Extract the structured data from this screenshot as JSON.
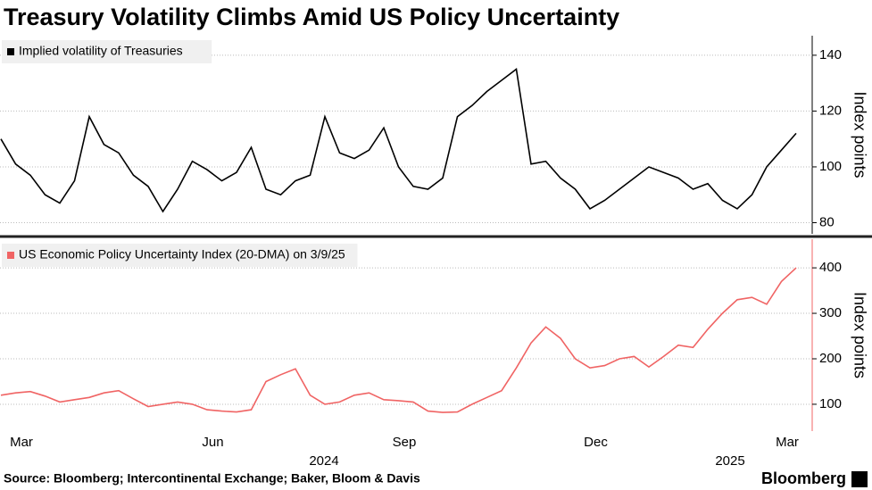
{
  "title": "Treasury Volatility Climbs Amid US Policy Uncertainty",
  "footer": {
    "source": "Source: Bloomberg; Intercontinental Exchange; Baker, Bloom & Davis",
    "brand": "Bloomberg"
  },
  "chart_data": [
    {
      "type": "line",
      "ylabel": "Index points",
      "ylim": [
        76,
        147
      ],
      "yticks": [
        80,
        100,
        120,
        140
      ],
      "grid": true,
      "series": [
        {
          "name": "Implied volatility of Treasuries",
          "color": "#000000",
          "values": [
            110,
            101,
            97,
            90,
            87,
            95,
            118,
            108,
            105,
            97,
            93,
            84,
            92,
            102,
            99,
            95,
            98,
            107,
            92,
            90,
            95,
            97,
            118,
            105,
            103,
            106,
            114,
            100,
            93,
            92,
            96,
            118,
            122,
            127,
            131,
            135,
            101,
            102,
            96,
            92,
            85,
            88,
            92,
            96,
            100,
            98,
            96,
            92,
            94,
            88,
            85,
            90,
            100,
            106,
            112
          ]
        }
      ]
    },
    {
      "type": "line",
      "ylabel": "Index points",
      "ylim": [
        41,
        463
      ],
      "yticks": [
        100,
        200,
        300,
        400
      ],
      "grid": true,
      "categories": [
        null,
        null,
        "Mar",
        null,
        null,
        null,
        null,
        null,
        null,
        null,
        null,
        null,
        null,
        null,
        null,
        "Jun",
        null,
        null,
        null,
        null,
        null,
        null,
        null,
        null,
        null,
        null,
        null,
        null,
        "Sep",
        null,
        null,
        null,
        null,
        null,
        null,
        null,
        null,
        null,
        null,
        null,
        null,
        "Dec",
        null,
        null,
        null,
        null,
        null,
        null,
        null,
        null,
        null,
        null,
        null,
        null,
        "Mar"
      ],
      "x_year_labels": [
        "2024",
        "2025"
      ],
      "series": [
        {
          "name": "US Economic Policy Uncertainty Index (20-DMA) on 3/9/25",
          "color": "#f06464",
          "values": [
            120,
            125,
            128,
            118,
            105,
            110,
            115,
            125,
            130,
            112,
            95,
            100,
            105,
            100,
            88,
            85,
            83,
            88,
            150,
            165,
            178,
            120,
            100,
            105,
            120,
            125,
            110,
            108,
            105,
            85,
            82,
            83,
            100,
            115,
            130,
            180,
            235,
            270,
            245,
            200,
            180,
            185,
            200,
            205,
            182,
            205,
            230,
            225,
            265,
            300,
            330,
            335,
            320,
            370,
            400
          ]
        }
      ]
    }
  ]
}
